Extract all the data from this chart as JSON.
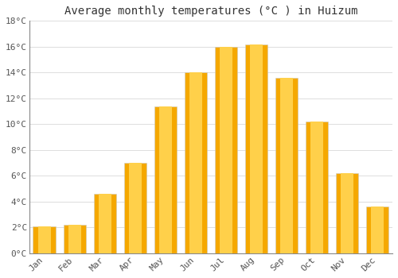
{
  "title": "Average monthly temperatures (°C ) in Huizum",
  "months": [
    "Jan",
    "Feb",
    "Mar",
    "Apr",
    "May",
    "Jun",
    "Jul",
    "Aug",
    "Sep",
    "Oct",
    "Nov",
    "Dec"
  ],
  "values": [
    2.1,
    2.2,
    4.6,
    7.0,
    11.4,
    14.0,
    16.0,
    16.2,
    13.6,
    10.2,
    6.2,
    3.6
  ],
  "bar_color_center": "#FFD04A",
  "bar_color_edge": "#F5A800",
  "background_color": "#FFFFFF",
  "plot_bg_color": "#FFFFFF",
  "grid_color": "#DDDDDD",
  "ylim": [
    0,
    18
  ],
  "yticks": [
    0,
    2,
    4,
    6,
    8,
    10,
    12,
    14,
    16,
    18
  ],
  "ytick_labels": [
    "0°C",
    "2°C",
    "4°C",
    "6°C",
    "8°C",
    "10°C",
    "12°C",
    "14°C",
    "16°C",
    "18°C"
  ],
  "title_fontsize": 10,
  "tick_fontsize": 8,
  "font_family": "monospace",
  "bar_width": 0.75
}
